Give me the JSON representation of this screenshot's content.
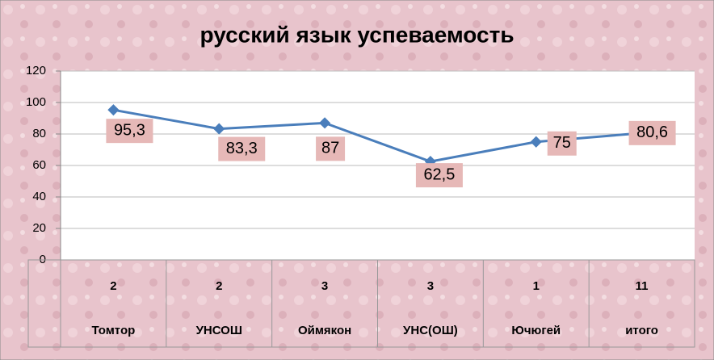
{
  "chart_data": {
    "type": "line",
    "title": "русский язык успеваемость",
    "categories": [
      "Томтор",
      "УНСОШ",
      "Оймякон",
      "УНС(ОШ)",
      "Ючюгей",
      "итого"
    ],
    "category_counts": [
      "2",
      "2",
      "3",
      "3",
      "1",
      "11"
    ],
    "series": [
      {
        "color": "#4a7ebb",
        "values": [
          95.3,
          83.3,
          87,
          62.5,
          75,
          80.6
        ],
        "value_labels": [
          "95,3",
          "83,3",
          "87",
          "62,5",
          "75",
          "80,6"
        ]
      }
    ],
    "ylim": [
      0,
      120
    ],
    "yticks": [
      0,
      20,
      40,
      60,
      80,
      100,
      120
    ],
    "grid": true
  }
}
